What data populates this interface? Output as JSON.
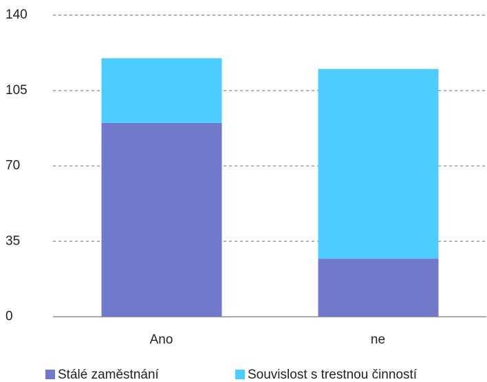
{
  "chart_data": {
    "type": "stacked_bar",
    "categories": [
      "Ano",
      "ne"
    ],
    "series": [
      {
        "name": "Stálé zaměstnání",
        "color": "#7179cb",
        "values": [
          90,
          27
        ]
      },
      {
        "name": "Souvislost s trestnou činností",
        "color": "#4dccfe",
        "values": [
          30,
          88
        ]
      }
    ],
    "ylim": [
      0,
      140
    ],
    "yticks": [
      0,
      35,
      70,
      105,
      140
    ],
    "grid": true,
    "legend": "bottom"
  }
}
